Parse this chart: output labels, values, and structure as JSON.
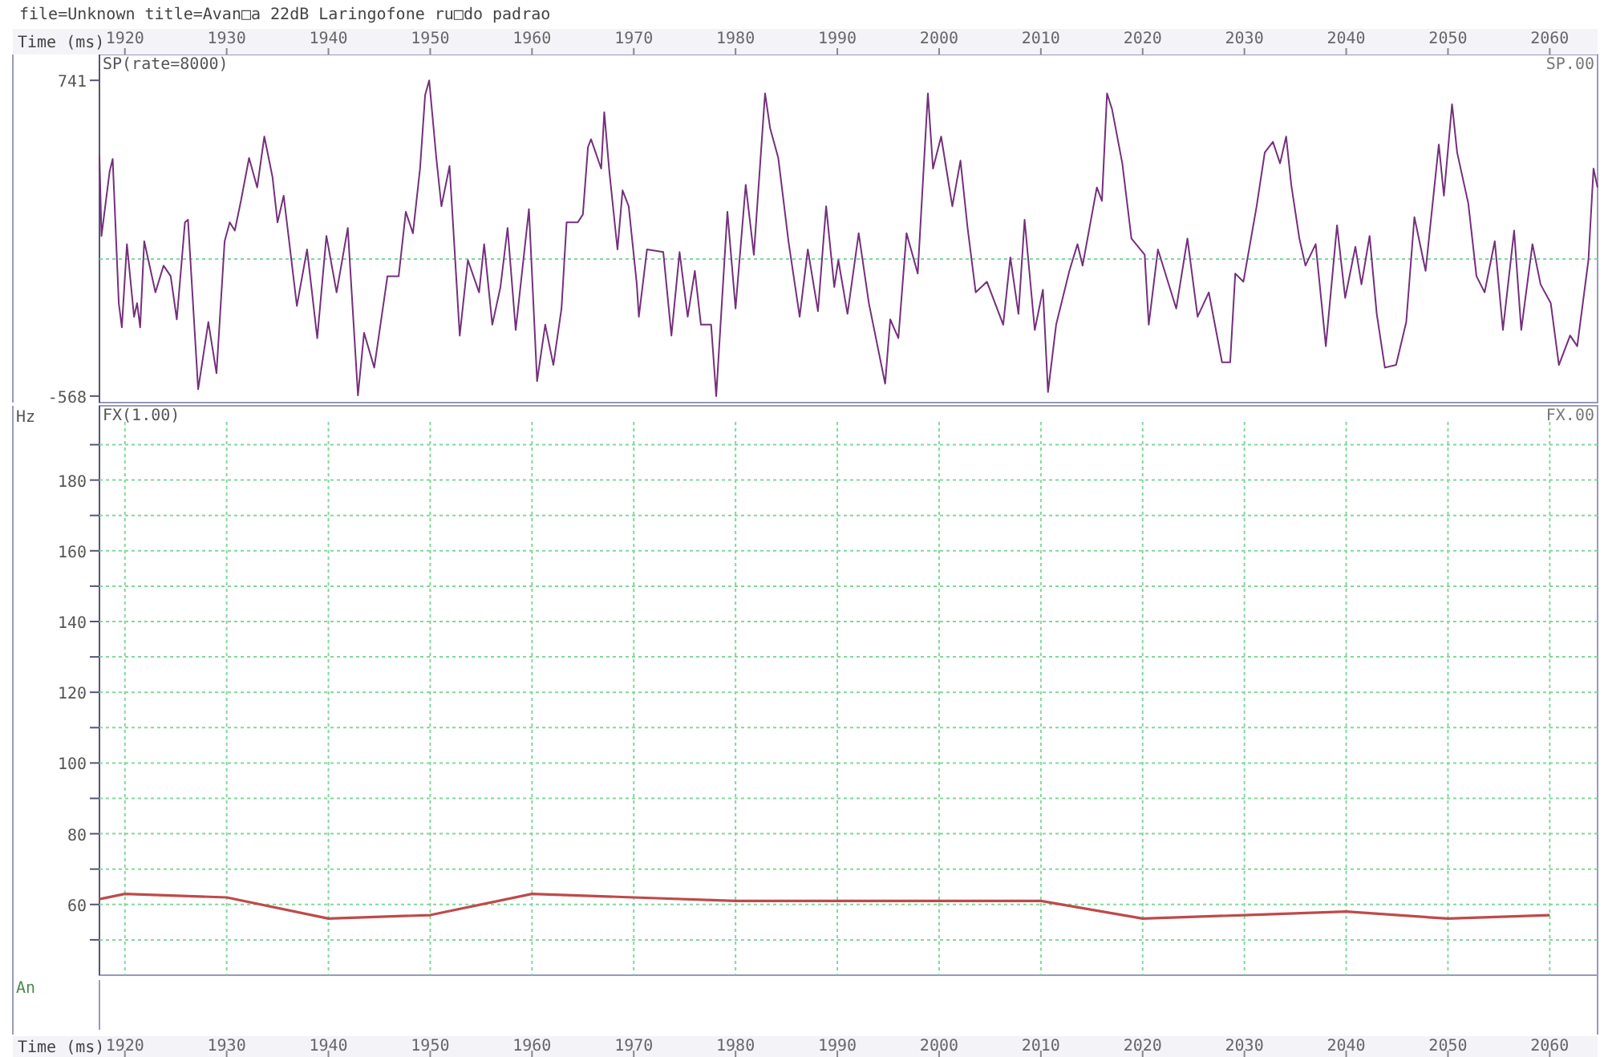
{
  "chart_data": [
    {
      "type": "line",
      "title": "file=Unknown title=Avan□a 22dB Laringofone ru□do padrao",
      "subtitle": "SP(rate=8000)",
      "annotations": [
        "SP.00"
      ],
      "x2label": "Time (ms)",
      "xlim": [
        1917.5,
        2064.7
      ],
      "x2lim": [
        1917.5,
        2064.7
      ],
      "x2ticks": [
        1920,
        1930,
        1940,
        1950,
        1960,
        1970,
        1980,
        1990,
        2000,
        2010,
        2020,
        2030,
        2040,
        2050,
        2060
      ],
      "ylim": [
        -595,
        848
      ],
      "yticks": [
        -568,
        741
      ],
      "grid": false,
      "ref_lines": [
        {
          "axis": "y",
          "value": 0,
          "color": "#7fd99a",
          "line_style": "dotted"
        }
      ],
      "series": [
        {
          "color": "#74307c",
          "x": [
            1917.5,
            1917.7,
            1918.5,
            1918.8,
            1919.4,
            1919.7,
            1920.2,
            1920.9,
            1921.2,
            1921.5,
            1921.9,
            1923.0,
            1923.8,
            1924.5,
            1925.1,
            1925.9,
            1926.2,
            1927.2,
            1928.2,
            1929.0,
            1929.8,
            1930.3,
            1930.8,
            1931.4,
            1932.2,
            1933.0,
            1933.7,
            1934.5,
            1935.0,
            1935.6,
            1936.9,
            1937.9,
            1938.9,
            1939.8,
            1940.8,
            1941.9,
            1942.9,
            1943.5,
            1944.5,
            1945.8,
            1946.9,
            1947.6,
            1948.3,
            1949.0,
            1949.5,
            1949.9,
            1950.6,
            1951.1,
            1951.9,
            1952.9,
            1953.7,
            1954.8,
            1955.3,
            1956.1,
            1956.9,
            1957.6,
            1958.4,
            1959.7,
            1960.5,
            1961.3,
            1962.1,
            1962.9,
            1963.4,
            1964.5,
            1965.0,
            1965.5,
            1965.8,
            1966.8,
            1967.1,
            1967.6,
            1968.4,
            1968.9,
            1969.5,
            1970.3,
            1970.5,
            1971.3,
            1972.9,
            1973.7,
            1974.5,
            1975.3,
            1976.0,
            1976.6,
            1977.6,
            1978.1,
            1979.2,
            1980.0,
            1981.0,
            1981.8,
            1982.9,
            1983.4,
            1984.2,
            1985.2,
            1986.3,
            1987.1,
            1988.1,
            1988.9,
            1989.7,
            1990.1,
            1991.0,
            1992.1,
            1993.1,
            1994.7,
            1995.2,
            1996.0,
            1996.8,
            1997.9,
            1998.9,
            1999.4,
            2000.2,
            2001.3,
            2002.1,
            2002.8,
            2003.6,
            2004.7,
            2006.3,
            2007.0,
            2007.8,
            2008.4,
            2009.4,
            2010.2,
            2010.7,
            2011.5,
            2012.8,
            2013.6,
            2014.1,
            2015.5,
            2016.0,
            2016.5,
            2017.0,
            2018.0,
            2018.9,
            2020.2,
            2020.6,
            2021.5,
            2023.3,
            2024.4,
            2025.4,
            2026.5,
            2027.8,
            2028.6,
            2029.1,
            2029.9,
            2031.2,
            2032.0,
            2032.8,
            2033.5,
            2034.1,
            2034.6,
            2035.4,
            2036.0,
            2037.0,
            2038.0,
            2039.1,
            2039.9,
            2040.9,
            2041.5,
            2042.3,
            2043.0,
            2043.8,
            2044.9,
            2045.9,
            2046.7,
            2047.8,
            2049.1,
            2049.6,
            2050.4,
            2050.9,
            2052.0,
            2052.8,
            2053.6,
            2054.6,
            2055.4,
            2056.5,
            2057.2,
            2058.3,
            2059.1,
            2060.1,
            2060.9,
            2062.0,
            2062.7,
            2063.8,
            2064.3,
            2064.7
          ],
          "values": [
            430,
            96,
            363,
            415,
            -183,
            -283,
            62,
            -239,
            -183,
            -283,
            74,
            -138,
            -27,
            -71,
            -250,
            152,
            163,
            -540,
            -261,
            -473,
            74,
            152,
            118,
            241,
            419,
            297,
            508,
            341,
            152,
            263,
            -194,
            40,
            -328,
            96,
            -138,
            129,
            -565,
            -306,
            -450,
            -71,
            -71,
            196,
            107,
            375,
            680,
            741,
            419,
            219,
            386,
            -317,
            -4,
            -138,
            62,
            -272,
            -116,
            129,
            -294,
            207,
            -506,
            -272,
            -439,
            -205,
            152,
            152,
            185,
            464,
            497,
            375,
            609,
            363,
            40,
            285,
            219,
            -105,
            -239,
            40,
            29,
            -317,
            29,
            -239,
            -49,
            -272,
            -272,
            -568,
            196,
            -205,
            308,
            18,
            687,
            542,
            419,
            74,
            -239,
            40,
            -216,
            219,
            -116,
            -4,
            -227,
            107,
            -183,
            -517,
            -250,
            -328,
            107,
            -60,
            687,
            375,
            508,
            219,
            408,
            129,
            -138,
            -94,
            -272,
            7,
            -227,
            163,
            -294,
            -127,
            -551,
            -272,
            -49,
            62,
            -27,
            297,
            241,
            687,
            620,
            397,
            85,
            18,
            -272,
            40,
            -205,
            85,
            -239,
            -138,
            -428,
            -428,
            -60,
            -94,
            219,
            442,
            486,
            397,
            508,
            308,
            85,
            -27,
            62,
            -361,
            140,
            -161,
            51,
            -105,
            96,
            -227,
            -450,
            -439,
            -261,
            174,
            -49,
            475,
            263,
            642,
            442,
            230,
            -71,
            -138,
            74,
            -294,
            118,
            -294,
            62,
            -105,
            -183,
            -439,
            -317,
            -361,
            -4,
            375,
            297
          ]
        }
      ]
    },
    {
      "type": "line",
      "subtitle": "FX(1.00)",
      "annotations": [
        "FX.00",
        "An"
      ],
      "xlabel": "Time (ms)",
      "ylabel": "Hz",
      "xlim": [
        1917.5,
        2064.7
      ],
      "xticks": [
        1920,
        1930,
        1940,
        1950,
        1960,
        1970,
        1980,
        1990,
        2000,
        2010,
        2020,
        2030,
        2040,
        2050,
        2060
      ],
      "ylim": [
        40,
        201
      ],
      "yticks": [
        {
          "value": 50,
          "label": null
        },
        60,
        {
          "value": 70,
          "label": null
        },
        80,
        {
          "value": 90,
          "label": null
        },
        100,
        {
          "value": 110,
          "label": null
        },
        120,
        {
          "value": 130,
          "label": null
        },
        140,
        {
          "value": 150,
          "label": null
        },
        160,
        {
          "value": 170,
          "label": null
        },
        180,
        {
          "value": 190,
          "label": null
        }
      ],
      "grid": true,
      "series": [
        {
          "color": "#bf4a4a",
          "x": [
            1917.5,
            1920,
            1930,
            1940,
            1950,
            1960,
            1970,
            1980,
            1990,
            2000,
            2010,
            2020,
            2030,
            2040,
            2050,
            2060
          ],
          "values": [
            61.5,
            63,
            62,
            56,
            57,
            63,
            62,
            61,
            61,
            61,
            61,
            56,
            57,
            58,
            56,
            57
          ]
        }
      ]
    }
  ]
}
